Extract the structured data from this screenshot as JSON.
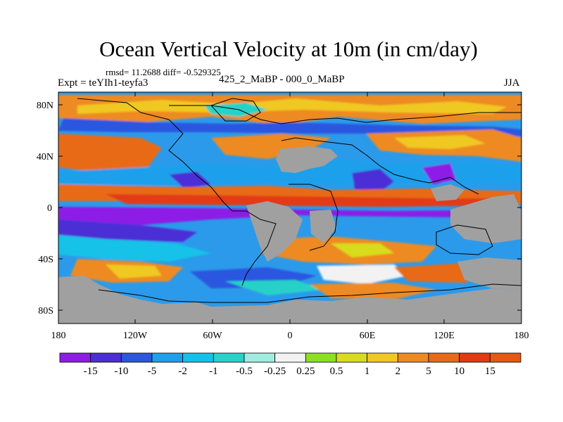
{
  "header": {
    "title": "Ocean Vertical Velocity at 10m (in cm/day)",
    "stats": "rmsd= 11.2688 diff= -0.529325",
    "experiment": "Expt = teYIh1-teyfa3",
    "comparison": "425_2_MaBP - 000_0_MaBP",
    "season": "JJA"
  },
  "axes": {
    "lat_ticks": [
      "80N",
      "40N",
      "0",
      "40S",
      "80S"
    ],
    "lon_ticks": [
      "180",
      "120W",
      "60W",
      "0",
      "60E",
      "120E",
      "180"
    ]
  },
  "colorbar": {
    "levels": [
      "-15",
      "-10",
      "-5",
      "-2",
      "-1",
      "-0.5",
      "-0.25",
      "0.25",
      "0.5",
      "1",
      "2",
      "5",
      "10",
      "15"
    ],
    "colors": [
      "#8c1ee6",
      "#4c2ed6",
      "#2c56e0",
      "#1ea0ec",
      "#12c2e8",
      "#28d2c8",
      "#a0ece0",
      "#f2f2f2",
      "#8ce020",
      "#d8dc1e",
      "#f0c824",
      "#ee8a20",
      "#e86a18",
      "#e23a12",
      "#e65812"
    ]
  },
  "map": {
    "land_color": "#a0a0a0",
    "coast_color": "#000000"
  }
}
